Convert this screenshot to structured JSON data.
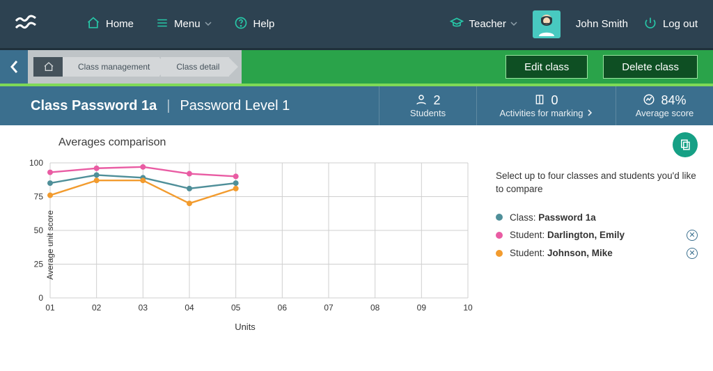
{
  "nav": {
    "home": "Home",
    "menu": "Menu",
    "help": "Help",
    "role": "Teacher",
    "username": "John Smith",
    "logout": "Log out"
  },
  "breadcrumb": {
    "items": [
      "Class management",
      "Class detail"
    ]
  },
  "actions": {
    "edit": "Edit class",
    "delete": "Delete class"
  },
  "title": {
    "class_label": "Class",
    "class_name": "Password 1a",
    "level": "Password Level 1"
  },
  "stats": {
    "students": {
      "value": "2",
      "label": "Students"
    },
    "activities": {
      "value": "0",
      "label": "Activities for marking"
    },
    "score": {
      "value": "84%",
      "label": "Average score"
    }
  },
  "side": {
    "help": "Select up to four classes and students you'd like to compare"
  },
  "legend": {
    "class_prefix": "Class: ",
    "student_prefix": "Student: ",
    "items": [
      {
        "kind": "class",
        "name": "Password 1a",
        "color": "#4f8f99"
      },
      {
        "kind": "student",
        "name": "Darlington, Emily",
        "color": "#e95ca3"
      },
      {
        "kind": "student",
        "name": "Johnson, Mike",
        "color": "#f29b2e"
      }
    ]
  },
  "chart": {
    "title": "Averages comparison",
    "type": "line",
    "x_label": "Units",
    "y_label": "Average unit score",
    "ylim": [
      0,
      100
    ],
    "yticks": [
      0,
      25,
      50,
      75,
      100
    ],
    "x_categories": [
      "01",
      "02",
      "03",
      "04",
      "05",
      "06",
      "07",
      "08",
      "09",
      "10"
    ],
    "colors": {
      "grid": "#cfcfcf",
      "axis": "#4a4a4a",
      "bg": "#ffffff"
    },
    "marker_radius": 4,
    "line_width": 2.4,
    "series": [
      {
        "name": "Class: Password 1a",
        "color": "#4f8f99",
        "values": [
          85,
          91,
          89,
          81,
          85
        ]
      },
      {
        "name": "Student: Darlington, Emily",
        "color": "#e95ca3",
        "values": [
          93,
          96,
          97,
          92,
          90
        ]
      },
      {
        "name": "Student: Johnson, Mike",
        "color": "#f29b2e",
        "values": [
          76,
          87,
          87,
          70,
          81
        ]
      }
    ]
  }
}
